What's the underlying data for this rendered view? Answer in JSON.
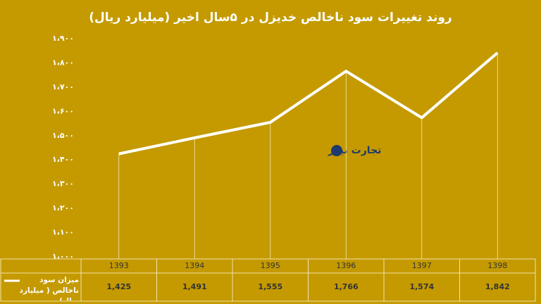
{
  "chart_data": {
    "type": "line",
    "title": "روند تغییرات سود ناخالص خدیزل در ۵سال اخیر (میلیارد ریال)",
    "watermark": "تجارت نیوز",
    "categories": [
      "1393",
      "1394",
      "1395",
      "1396",
      "1397",
      "1398"
    ],
    "series": [
      {
        "name": "میزان سود ناخالص ( میلیارد ریال)",
        "color": "#ffffff",
        "values": [
          1425,
          1491,
          1555,
          1766,
          1574,
          1842
        ],
        "value_labels": [
          "1,425",
          "1,491",
          "1,555",
          "1,766",
          "1,574",
          "1,842"
        ]
      }
    ],
    "ylim": [
      1000,
      1900
    ],
    "yticks": [
      {
        "value": 1000,
        "label": "۱،۰۰۰"
      },
      {
        "value": 1100,
        "label": "۱،۱۰۰"
      },
      {
        "value": 1200,
        "label": "۱،۲۰۰"
      },
      {
        "value": 1300,
        "label": "۱،۳۰۰"
      },
      {
        "value": 1400,
        "label": "۱،۴۰۰"
      },
      {
        "value": 1500,
        "label": "۱،۵۰۰"
      },
      {
        "value": 1600,
        "label": "۱،۶۰۰"
      },
      {
        "value": 1700,
        "label": "۱،۷۰۰"
      },
      {
        "value": 1800,
        "label": "۱،۸۰۰"
      },
      {
        "value": 1900,
        "label": "۱،۹۰۰"
      }
    ],
    "grid": false
  }
}
